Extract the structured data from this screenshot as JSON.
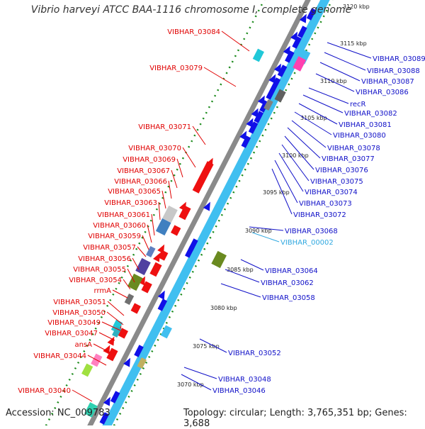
{
  "title": "Vibrio harveyi ATCC BAA-1116 chromosome I, complete genome",
  "accession_text": "Accession: NC_009783",
  "topology_text": "Topology: circular; Length: 3,765,351 bp; Genes: 3,688",
  "colors": {
    "left_label": "#e00000",
    "right_label": "#1010c8",
    "cyan_label": "#30a8e0",
    "backbone_gray": "#8a8a8a",
    "backbone_blue": "#40bff0",
    "gene_blue": "#1010e8",
    "gene_red": "#ee1010",
    "dots": "#1a8a1a"
  },
  "kbp_ticks": [
    "3120 kbp",
    "3115 kbp",
    "3110 kbp",
    "3105 kbp",
    "3100 kbp",
    "3095 kbp",
    "3090 kbp",
    "3085 kbp",
    "3080 kbp",
    "3075 kbp",
    "3070 kbp"
  ],
  "left_labels": [
    "VIBHAR_03084",
    "VIBHAR_03079",
    "VIBHAR_03071",
    "VIBHAR_03070",
    "VIBHAR_03069",
    "VIBHAR_03067",
    "VIBHAR_03066",
    "VIBHAR_03065",
    "VIBHAR_03063",
    "VIBHAR_03061",
    "VIBHAR_03060",
    "VIBHAR_03059",
    "VIBHAR_03057",
    "VIBHAR_03056",
    "VIBHAR_03055",
    "VIBHAR_03054",
    "rrmA",
    "VIBHAR_03051",
    "VIBHAR_03050",
    "VIBHAR_03049",
    "VIBHAR_03047",
    "ansA",
    "VIBHAR_03044",
    "VIBHAR_03040"
  ],
  "right_labels": [
    "VIBHAR_03089",
    "VIBHAR_03088",
    "VIBHAR_03087",
    "VIBHAR_03086",
    "recR",
    "VIBHAR_03082",
    "VIBHAR_03081",
    "VIBHAR_03080",
    "VIBHAR_03078",
    "VIBHAR_03077",
    "VIBHAR_03076",
    "VIBHAR_03075",
    "VIBHAR_03074",
    "VIBHAR_03073",
    "VIBHAR_03072",
    "VIBHAR_03068",
    "VIBHAR_00002",
    "VIBHAR_03064",
    "VIBHAR_03062",
    "VIBHAR_03058",
    "VIBHAR_03052",
    "VIBHAR_03048",
    "VIBHAR_03046"
  ]
}
